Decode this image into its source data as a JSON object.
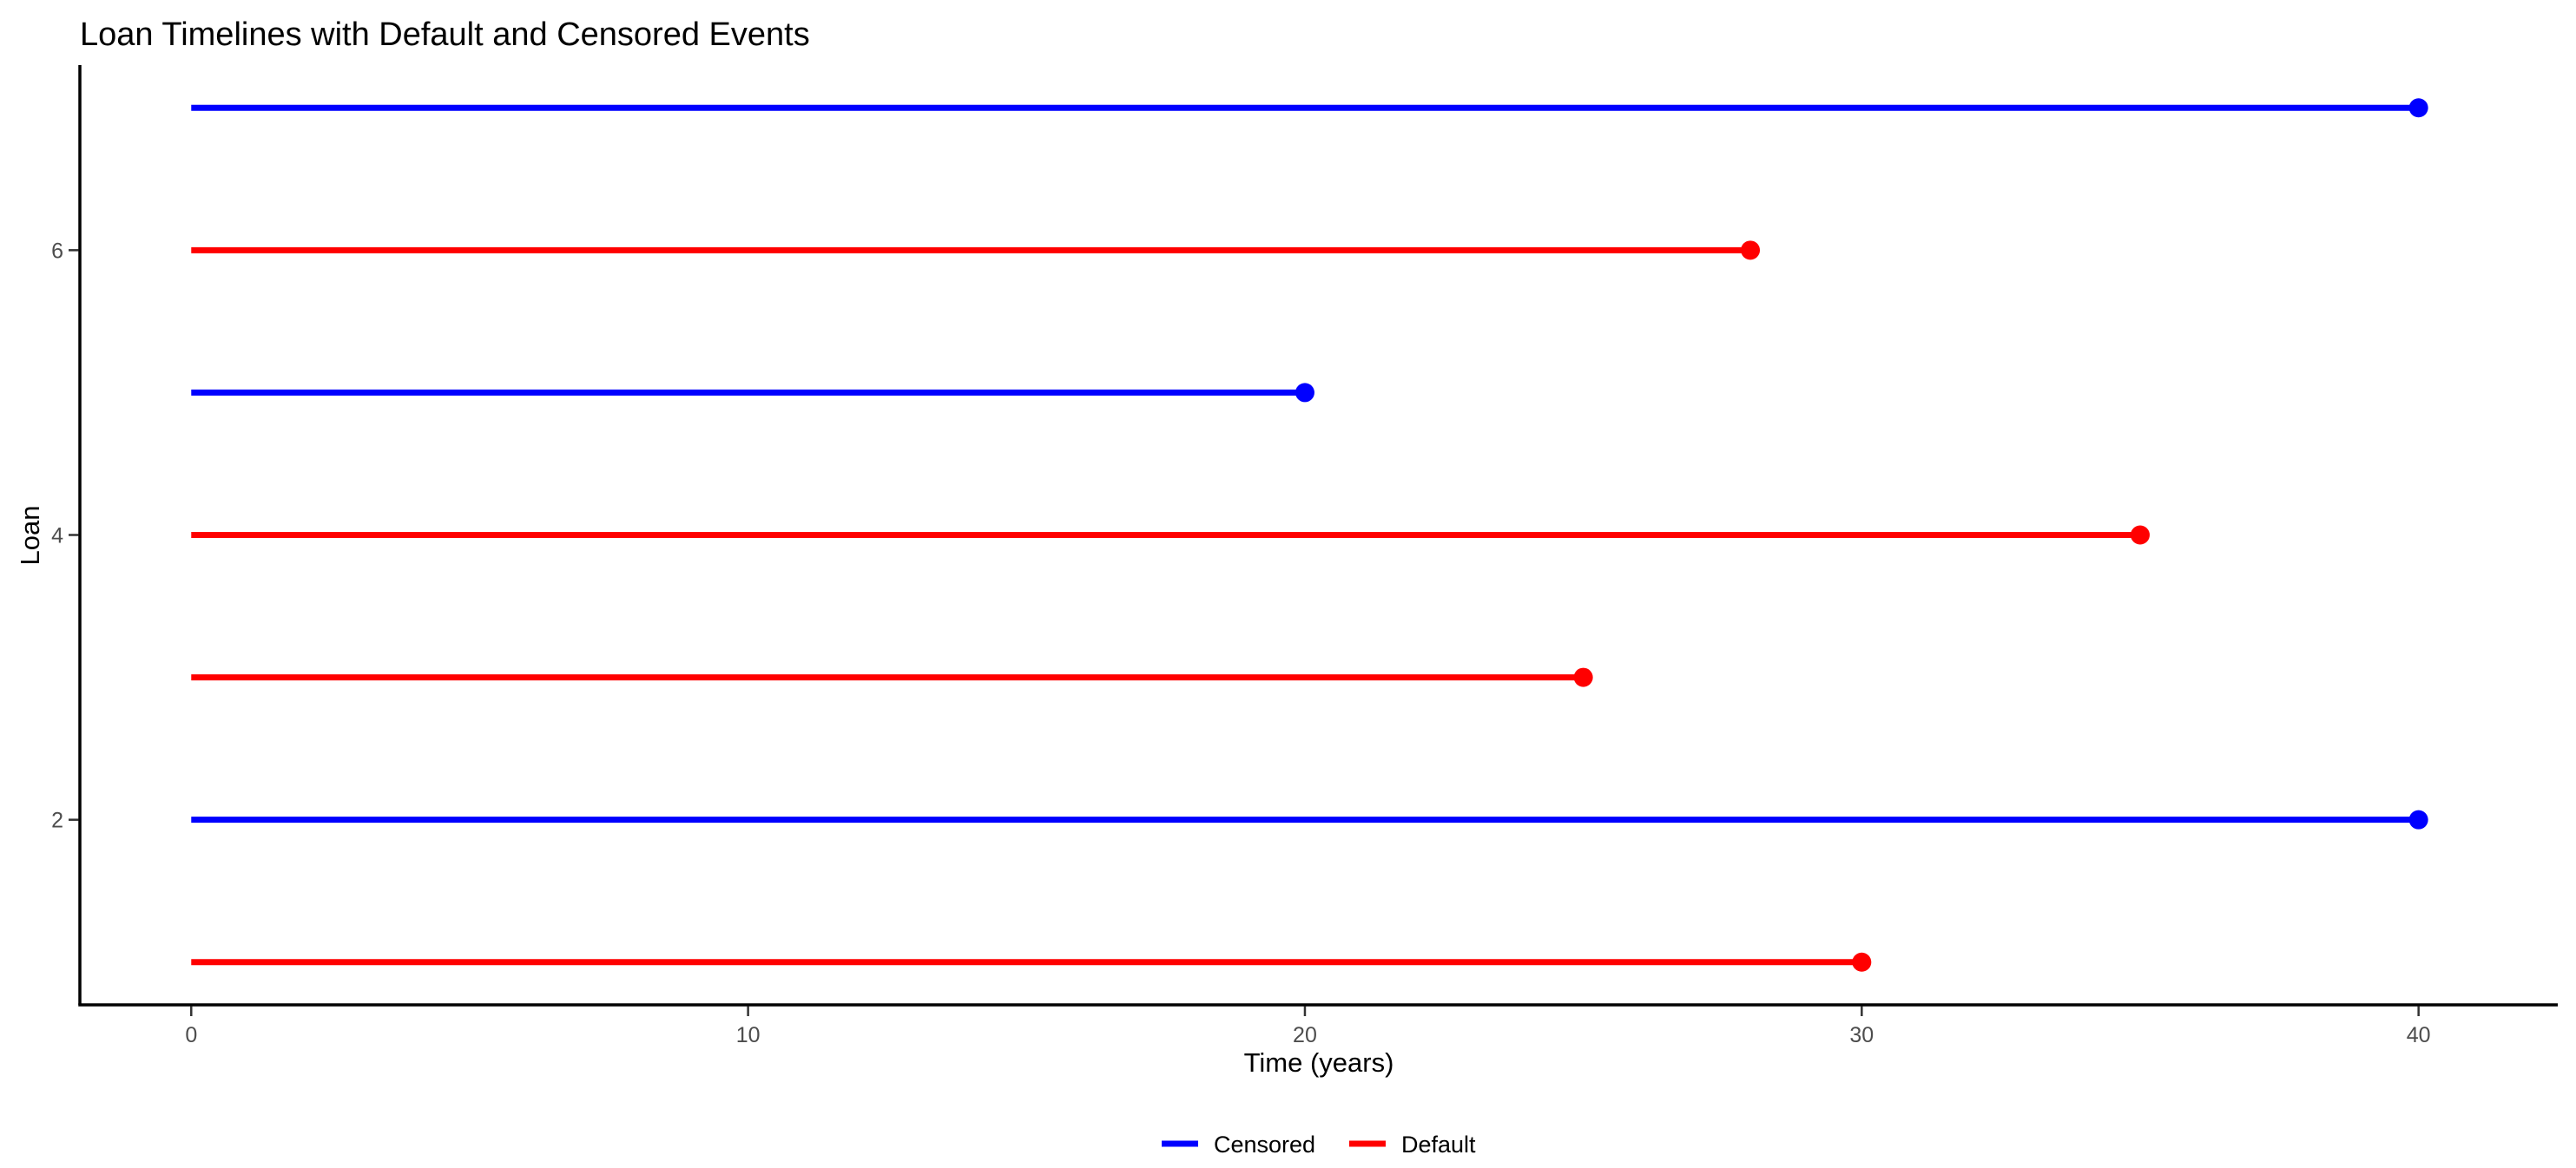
{
  "chart_data": {
    "type": "line",
    "title": "Loan Timelines with Default and Censored Events",
    "xlabel": "Time (years)",
    "ylabel": "Loan",
    "xlim": [
      -2,
      42.5
    ],
    "ylim": [
      0.7,
      7.3
    ],
    "x_ticks": [
      0,
      10,
      20,
      30,
      40
    ],
    "y_ticks": [
      2,
      4,
      6
    ],
    "grid": false,
    "legend_position": "bottom",
    "series": [
      {
        "name": "Censored",
        "color": "#0000ff"
      },
      {
        "name": "Default",
        "color": "#ff0000"
      }
    ],
    "loans": [
      {
        "loan": 1,
        "start": 0,
        "end": 30,
        "status": "Default"
      },
      {
        "loan": 2,
        "start": 0,
        "end": 40,
        "status": "Censored"
      },
      {
        "loan": 3,
        "start": 0,
        "end": 25,
        "status": "Default"
      },
      {
        "loan": 4,
        "start": 0,
        "end": 35,
        "status": "Default"
      },
      {
        "loan": 5,
        "start": 0,
        "end": 20,
        "status": "Censored"
      },
      {
        "loan": 6,
        "start": 0,
        "end": 28,
        "status": "Default"
      },
      {
        "loan": 7,
        "start": 0,
        "end": 40,
        "status": "Censored"
      }
    ]
  }
}
